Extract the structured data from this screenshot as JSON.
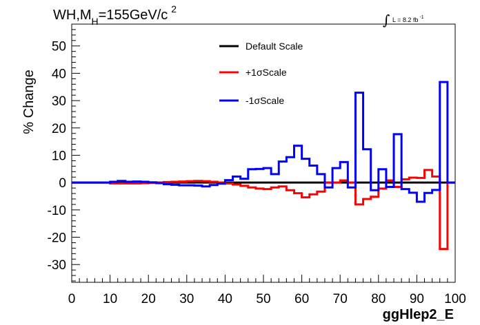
{
  "chart_data": {
    "type": "line",
    "title": "WH,M",
    "title_sub": "H",
    "title_tail": "=155GeV/c",
    "title_sup": "2",
    "lumi_prefix": "L = 8.2 fb",
    "lumi_sup": "-1",
    "xlabel": "ggHlep2_E",
    "ylabel": "% Change",
    "xlim": [
      0,
      100
    ],
    "ylim": [
      -36.5,
      58
    ],
    "x_ticks": [
      0,
      10,
      20,
      30,
      40,
      50,
      60,
      70,
      80,
      90,
      100
    ],
    "y_ticks": [
      -30,
      -20,
      -10,
      0,
      10,
      20,
      30,
      40,
      50
    ],
    "legend_position": "top-center",
    "grid": false,
    "bin_edges": [
      0,
      2,
      4,
      6,
      8,
      10,
      12,
      14,
      16,
      18,
      20,
      22,
      24,
      26,
      28,
      30,
      32,
      34,
      36,
      38,
      40,
      42,
      44,
      46,
      48,
      50,
      52,
      54,
      56,
      58,
      60,
      62,
      64,
      66,
      68,
      70,
      72,
      74,
      76,
      78,
      80,
      82,
      84,
      86,
      88,
      90,
      92,
      94,
      96,
      98,
      100
    ],
    "series": [
      {
        "name": "Default Scale",
        "color": "#000000",
        "values": [
          0,
          0,
          0,
          0,
          0,
          0,
          0,
          0,
          0,
          0,
          0,
          0,
          0,
          0,
          0,
          0,
          0,
          0,
          0,
          0,
          0,
          0,
          0,
          0,
          0,
          0,
          0,
          0,
          0,
          0,
          0,
          0,
          0,
          0,
          0,
          0,
          0,
          0,
          0,
          0,
          0,
          0,
          0,
          0,
          0,
          0,
          0,
          0,
          0,
          0
        ]
      },
      {
        "name": "+1σScale",
        "color": "#ff0000",
        "values": [
          0,
          0,
          0,
          0,
          0,
          -0.3,
          -0.3,
          -0.3,
          -0.3,
          -0.2,
          -0.1,
          0,
          0.2,
          0.3,
          0.4,
          0.5,
          0.6,
          0.5,
          0.3,
          0,
          -0.3,
          -0.7,
          -1.2,
          -1.8,
          -2.2,
          -2.4,
          -1.8,
          -1.4,
          -2.8,
          -3.9,
          -5.4,
          -4.3,
          -3.3,
          0,
          0,
          0.8,
          0,
          -8,
          -6,
          -5.2,
          -2.2,
          0.8,
          -1.6,
          1.2,
          1.8,
          1.7,
          4.6,
          2.2,
          -24.3,
          0
        ]
      },
      {
        "name": "-1σScale",
        "color": "#0000ff",
        "values": [
          0,
          0,
          0,
          0,
          0,
          0.3,
          0.6,
          0.3,
          0.4,
          0.3,
          0.1,
          -0.2,
          -0.6,
          -0.8,
          -1,
          -1,
          -1.1,
          -1.4,
          -0.9,
          -0.4,
          0.9,
          2.2,
          1.4,
          4.9,
          5,
          5.3,
          3.1,
          7.7,
          9.3,
          13.5,
          8.7,
          6.2,
          3.1,
          -1.8,
          5.3,
          7.5,
          -1.8,
          32.9,
          12.2,
          -2.8,
          4.9,
          -1.6,
          17.7,
          -2.4,
          -3.7,
          -7,
          -3.8,
          -2.7,
          36.8,
          0
        ]
      }
    ]
  }
}
